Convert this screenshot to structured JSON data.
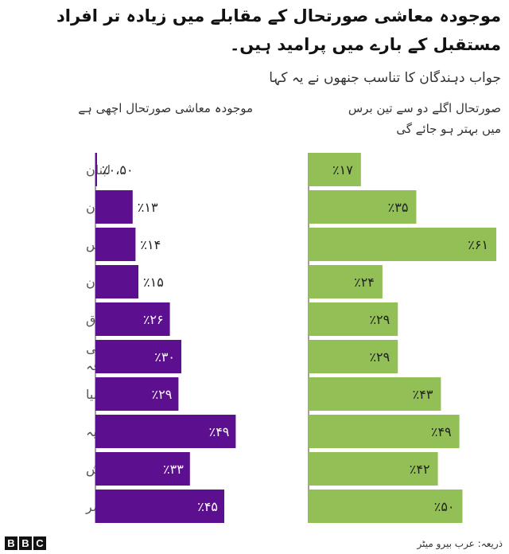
{
  "title": "موجودہ معاشی صورتحال کے مقابلے میں زیادہ تر افراد مستقبل کے بارے میں پرامید ہیں۔",
  "subtitle": "جواب دہندگان کا تناسب جنھوں نے یہ کہا",
  "source": "ذریعہ: عرب بیرو میٹر",
  "logo": [
    "B",
    "B",
    "C"
  ],
  "colors": {
    "current": "#5c0f8f",
    "future": "#92bf56",
    "axis": "#444444",
    "label": "#555555"
  },
  "chart_data": {
    "type": "bar",
    "orientation": "horizontal",
    "categories": [
      "لبنان",
      "سوڈان",
      "تیونس",
      "اردن",
      "عراق",
      "فلسطینی علاقہ",
      "لیبیا",
      "موریطانیہ",
      "مراکش",
      "مصر"
    ],
    "category_lines": [
      [
        "لبنان"
      ],
      [
        "سوڈان"
      ],
      [
        "تیونس"
      ],
      [
        "اردن"
      ],
      [
        "عراق"
      ],
      [
        "فلسطینی",
        "علاقہ"
      ],
      [
        "لیبیا"
      ],
      [
        "موریطانیہ"
      ],
      [
        "مراکش"
      ],
      [
        "مصر"
      ]
    ],
    "series": [
      {
        "name": "موجودہ معاشی صورتحال اچھی ہے",
        "values": [
          0.5,
          13,
          14,
          15,
          26,
          30,
          29,
          49,
          33,
          45
        ],
        "labels": [
          "٪۰،۵۰",
          "٪۱۳",
          "٪۱۴",
          "٪۱۵",
          "٪۲۶",
          "٪۳۰",
          "٪۲۹",
          "٪۴۹",
          "٪۳۳",
          "٪۴۵"
        ]
      },
      {
        "name": "صورتحال اگلے دو سے تین برس میں بہتر ہو جائے گی",
        "name_lines": [
          "صورتحال اگلے دو سے تین  برس",
          "میں بہتر ہو جائے گی"
        ],
        "values": [
          17,
          35,
          61,
          24,
          29,
          29,
          43,
          49,
          42,
          50
        ],
        "labels": [
          "٪۱۷",
          "٪۳۵",
          "٪۶۱",
          "٪۲۴",
          "٪۲۹",
          "٪۲۹",
          "٪۴۳",
          "٪۴۹",
          "٪۴۲",
          "٪۵۰"
        ]
      }
    ]
  }
}
